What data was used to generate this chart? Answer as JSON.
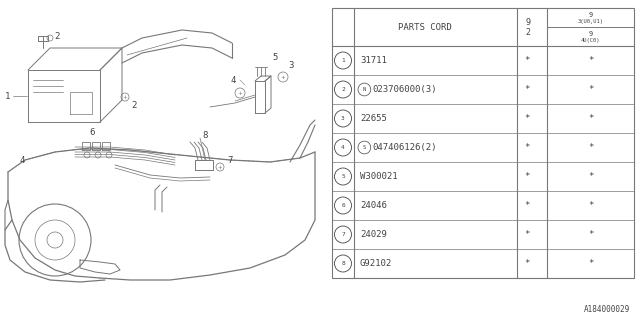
{
  "bg_color": "#ffffff",
  "title_code": "A184000029",
  "table": {
    "rows": [
      {
        "num": "1",
        "part": "31711",
        "c2": "*",
        "c3": "*"
      },
      {
        "num": "2",
        "part": "N023706000(3)",
        "c2": "*",
        "c3": "*"
      },
      {
        "num": "3",
        "part": "22655",
        "c2": "*",
        "c3": "*"
      },
      {
        "num": "4",
        "part": "S047406126(2)",
        "c2": "*",
        "c3": "*"
      },
      {
        "num": "5",
        "part": "W300021",
        "c2": "*",
        "c3": "*"
      },
      {
        "num": "6",
        "part": "24046",
        "c2": "*",
        "c3": "*"
      },
      {
        "num": "7",
        "part": "24029",
        "c2": "*",
        "c3": "*"
      },
      {
        "num": "8",
        "part": "G92102",
        "c2": "*",
        "c3": "*"
      }
    ]
  },
  "line_color": "#777777",
  "text_color": "#444444",
  "font_size": 6.5,
  "table_font_size": 6.5
}
